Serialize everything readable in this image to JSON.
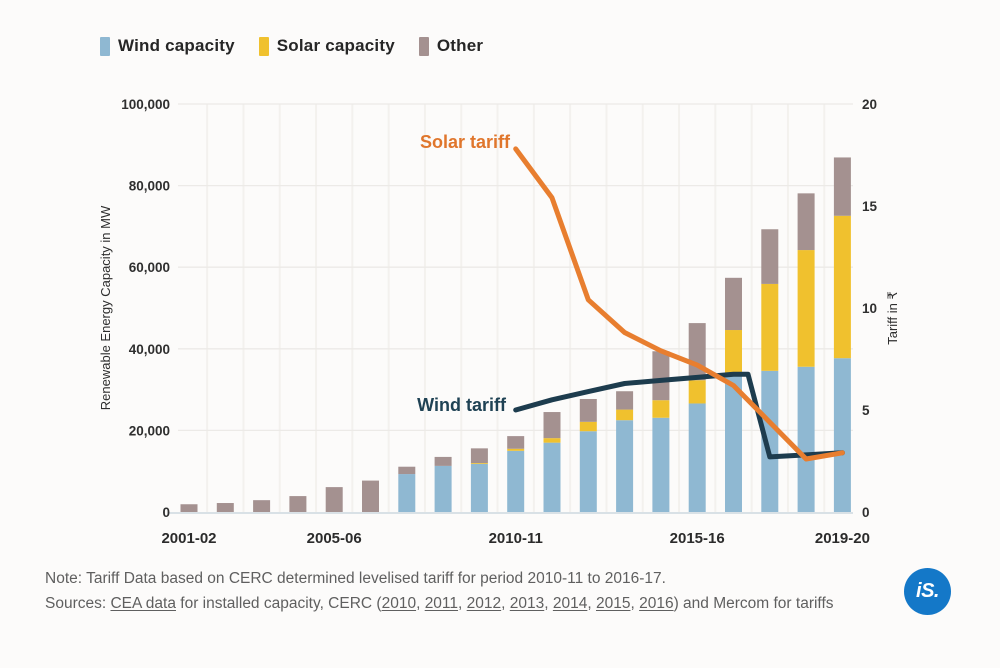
{
  "legend": {
    "items": [
      {
        "label": "Wind capacity",
        "color": "#8fb8d2"
      },
      {
        "label": "Solar capacity",
        "color": "#f0c12e"
      },
      {
        "label": "Other",
        "color": "#a49190"
      }
    ]
  },
  "chart_data": {
    "type": "bar",
    "subtype": "stacked-bar-with-lines",
    "categories": [
      "2001-02",
      "2002-03",
      "2003-04",
      "2004-05",
      "2005-06",
      "2006-07",
      "2007-08",
      "2008-09",
      "2009-10",
      "2010-11",
      "2011-12",
      "2012-13",
      "2013-14",
      "2014-15",
      "2015-16",
      "2016-17",
      "2017-18",
      "2018-19",
      "2019-20"
    ],
    "series": [
      {
        "name": "Wind capacity",
        "color": "#8fb8d2",
        "values": [
          0,
          0,
          0,
          0,
          0,
          0,
          9300,
          11300,
          11800,
          15000,
          17000,
          19800,
          22500,
          23100,
          26600,
          34000,
          34600,
          35600,
          37700
        ]
      },
      {
        "name": "Solar capacity",
        "color": "#f0c12e",
        "values": [
          0,
          0,
          0,
          0,
          0,
          0,
          0,
          0,
          200,
          500,
          1100,
          2300,
          2600,
          4300,
          5700,
          10600,
          21300,
          28600,
          34900
        ]
      },
      {
        "name": "Other",
        "color": "#a49190",
        "values": [
          1900,
          2200,
          2900,
          3900,
          6100,
          7700,
          1800,
          2200,
          3600,
          3100,
          6400,
          5600,
          4500,
          12000,
          14000,
          12800,
          13400,
          13900,
          14300
        ]
      }
    ],
    "lines": [
      {
        "name": "Solar tariff",
        "color": "#e87e2f",
        "points": [
          {
            "x": 9,
            "v": 17.8
          },
          {
            "x": 10,
            "v": 15.4
          },
          {
            "x": 11,
            "v": 10.4
          },
          {
            "x": 12,
            "v": 8.8
          },
          {
            "x": 13,
            "v": 7.9
          },
          {
            "x": 14,
            "v": 7.2
          },
          {
            "x": 15,
            "v": 6.2
          },
          {
            "x": 16,
            "v": 4.4
          },
          {
            "x": 17,
            "v": 2.6
          },
          {
            "x": 18,
            "v": 2.9
          }
        ]
      },
      {
        "name": "Wind tariff",
        "color": "#1d3c4e",
        "points": [
          {
            "x": 9,
            "v": 5.0
          },
          {
            "x": 10,
            "v": 5.5
          },
          {
            "x": 11,
            "v": 5.9
          },
          {
            "x": 12,
            "v": 6.3
          },
          {
            "x": 13,
            "v": 6.45
          },
          {
            "x": 14,
            "v": 6.6
          },
          {
            "x": 15,
            "v": 6.75
          },
          {
            "x": 15.4,
            "v": 6.75
          },
          {
            "x": 16,
            "v": 2.7
          },
          {
            "x": 17,
            "v": 2.8
          },
          {
            "x": 18,
            "v": 2.9
          }
        ]
      }
    ],
    "left_axis": {
      "label": "Renewable Energy Capacity in MW",
      "ticks": [
        "0",
        "20,000",
        "40,000",
        "60,000",
        "80,000",
        "100,000"
      ],
      "min": 0,
      "max": 100000
    },
    "right_axis": {
      "label": "Tariff in ₹",
      "ticks": [
        "0",
        "5",
        "10",
        "15",
        "20"
      ],
      "min": 0,
      "max": 20
    },
    "x_ticks": [
      {
        "label": "2001-02",
        "index": 0
      },
      {
        "label": "2005-06",
        "index": 4
      },
      {
        "label": "2010-11",
        "index": 9
      },
      {
        "label": "2015-16",
        "index": 14
      },
      {
        "label": "2019-20",
        "index": 18
      }
    ],
    "grid": {
      "horizontal": true,
      "vertical": "faint"
    }
  },
  "footer": {
    "note": "Note: Tariff Data based on CERC determined levelised tariff for period 2010-11 to 2016-17.",
    "sources_prefix": "Sources: ",
    "cea_link": "CEA data",
    "sources_mid": " for installed capacity, CERC (",
    "cerc_year_links": [
      "2010",
      "2011",
      "2012",
      "2013",
      "2014",
      "2015",
      "2016"
    ],
    "sources_suffix": ") and Mercom for tariffs",
    "logo_text": "iS.",
    "logo_color": "#1478c8"
  }
}
